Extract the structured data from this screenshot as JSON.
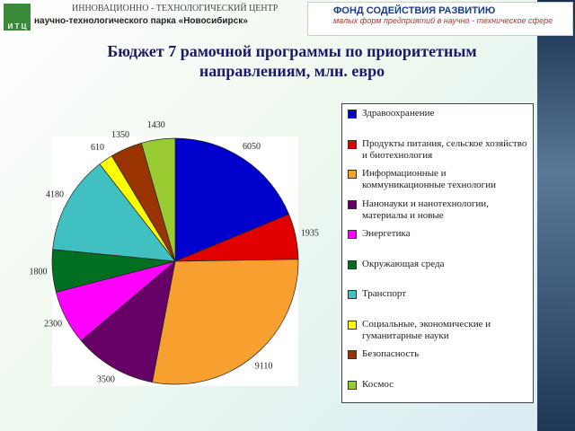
{
  "header": {
    "logo": "И Т Ц",
    "org_line1": "ИННОВАЦИОННО - ТЕХНОЛОГИЧЕСКИЙ ЦЕНТР",
    "org_line2": "научно-технологического парка «Новосибирск»",
    "fund_line1": "ФОНД СОДЕЙСТВИЯ РАЗВИТИЮ",
    "fund_line2": "малых форм предприятий в научно - техническое сфере"
  },
  "chart_data": {
    "type": "pie",
    "title": "Бюджет 7 рамочной программы по приоритетным направлениям, млн. евро",
    "categories": [
      "Здравоохранение",
      "Продукты питания, сельское хозяйство и биотехнология",
      "Информационные и коммуникационные технологии",
      "Нанонауки и нанотехнологии, материалы и новые",
      "Энергетика",
      "Окружающая среда",
      "Транспорт",
      "Социальные, экономические и гуманитарные науки",
      "Безопасность",
      "Космос"
    ],
    "values": [
      6050,
      1935,
      9110,
      3500,
      2300,
      1800,
      4180,
      610,
      1350,
      1430
    ],
    "colors": [
      "#0000cc",
      "#e00000",
      "#f7a030",
      "#660066",
      "#ff00ff",
      "#007020",
      "#40c0c0",
      "#ffff00",
      "#993300",
      "#99cc33"
    ],
    "legend": "right"
  }
}
